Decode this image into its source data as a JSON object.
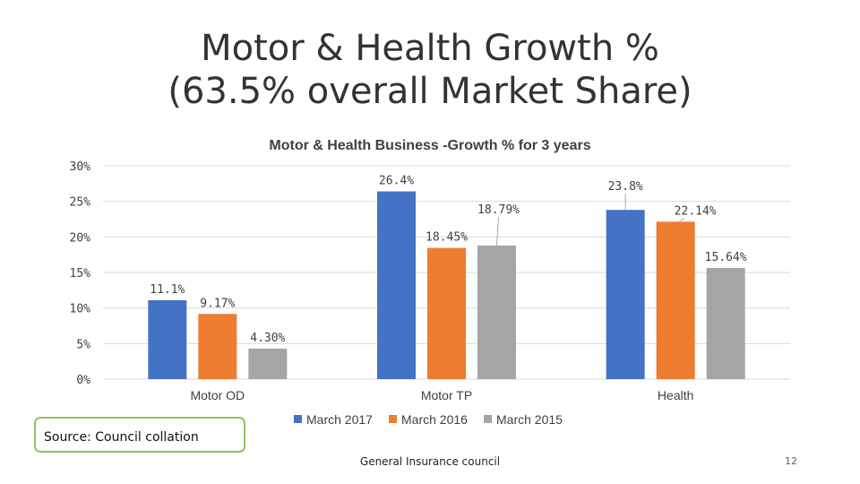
{
  "slide": {
    "title_line1": "Motor & Health Growth %",
    "title_line2": "(63.5% overall Market Share)",
    "source": "Source: Council collation",
    "footer": "General Insurance council",
    "slide_number": "12"
  },
  "chart_data": {
    "type": "bar",
    "title": "Motor & Health Business -Growth % for 3 years",
    "categories": [
      "Motor OD",
      "Motor TP",
      "Health"
    ],
    "series": [
      {
        "name": "March 2017",
        "color": "#4472c4",
        "values": [
          11.1,
          26.4,
          23.8
        ],
        "labels": [
          "11.1%",
          "26.4%",
          "23.8%"
        ]
      },
      {
        "name": "March 2016",
        "color": "#ed7d31",
        "values": [
          9.17,
          18.45,
          22.14
        ],
        "labels": [
          "9.17%",
          "18.45%",
          "22.14%"
        ]
      },
      {
        "name": "March 2015",
        "color": "#a5a5a5",
        "values": [
          4.3,
          18.79,
          15.64
        ],
        "labels": [
          "4.30%",
          "18.79%",
          "15.64%"
        ]
      }
    ],
    "y_ticks": [
      "0%",
      "5%",
      "10%",
      "15%",
      "20%",
      "25%",
      "30%"
    ],
    "ylim": [
      0,
      30
    ],
    "grid": true,
    "legend_position": "bottom"
  }
}
